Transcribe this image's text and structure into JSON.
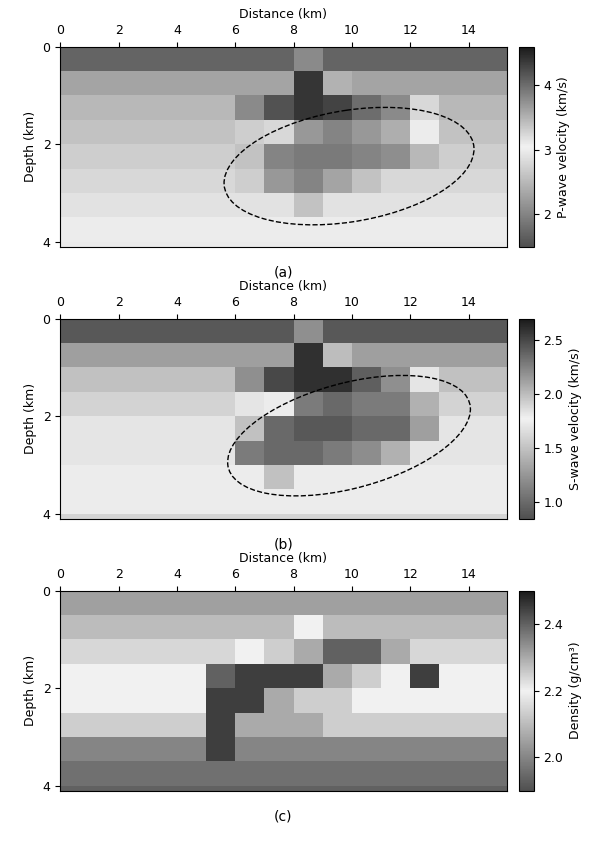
{
  "chart_data": [
    {
      "type": "heatmap",
      "title": "(a)",
      "x_label": "Distance (km)",
      "y_label": "Depth (km)",
      "xlim": [
        0,
        15.3
      ],
      "ylim": [
        4.1,
        0
      ],
      "xticks": [
        0,
        2,
        4,
        6,
        8,
        10,
        12,
        14
      ],
      "yticks": [
        0,
        2,
        4
      ],
      "x": [
        0.5,
        1.5,
        2.5,
        3.5,
        4.5,
        5.5,
        6.5,
        7.5,
        8.5,
        9.5,
        10.5,
        11.5,
        12.5,
        13.5,
        14.5,
        15.5
      ],
      "y": [
        0.25,
        0.75,
        1.25,
        1.75,
        2.25,
        2.75,
        3.25,
        3.75,
        4.25
      ],
      "cells": [
        [
          1.7,
          1.7,
          1.7,
          1.7,
          1.7,
          1.7,
          1.7,
          1.7,
          3.8,
          1.7,
          1.7,
          1.7,
          1.7,
          1.7,
          1.7,
          1.7
        ],
        [
          2.3,
          2.3,
          2.3,
          2.3,
          2.3,
          2.3,
          2.3,
          2.3,
          4.4,
          3.5,
          2.3,
          2.3,
          2.3,
          2.3,
          2.3,
          2.3
        ],
        [
          2.5,
          2.5,
          2.5,
          2.5,
          2.5,
          2.5,
          3.8,
          4.2,
          4.4,
          4.3,
          4.0,
          3.8,
          2.8,
          2.5,
          2.5,
          2.5
        ],
        [
          2.6,
          2.6,
          2.6,
          2.6,
          2.6,
          2.6,
          2.7,
          2.8,
          2.2,
          2.0,
          2.2,
          2.4,
          3.0,
          2.6,
          2.6,
          2.6
        ],
        [
          2.7,
          2.7,
          2.7,
          2.7,
          2.7,
          2.7,
          2.6,
          2.0,
          1.9,
          1.9,
          2.0,
          2.1,
          2.5,
          2.7,
          2.7,
          2.7
        ],
        [
          2.8,
          2.8,
          2.8,
          2.8,
          2.8,
          2.8,
          2.7,
          2.2,
          2.0,
          2.3,
          2.6,
          2.8,
          2.8,
          2.8,
          2.8,
          2.8
        ],
        [
          2.9,
          2.9,
          2.9,
          2.9,
          2.9,
          2.9,
          2.9,
          2.9,
          2.6,
          2.9,
          2.9,
          2.9,
          2.9,
          2.9,
          2.9,
          2.9
        ],
        [
          3.0,
          3.0,
          3.0,
          3.0,
          3.0,
          3.0,
          3.0,
          3.0,
          3.0,
          3.0,
          3.0,
          3.0,
          3.0,
          3.0,
          3.0,
          3.0
        ],
        [
          3.1,
          3.1,
          3.1,
          3.1,
          3.1,
          3.1,
          3.1,
          3.1,
          3.1,
          3.1,
          3.1,
          3.1,
          3.1,
          3.1,
          3.1,
          3.1
        ]
      ],
      "colorbar_label": "P-wave velocity (km/s)",
      "colorbar_lim": [
        1.5,
        4.6
      ],
      "colorbar_ticks": [
        2,
        3,
        4
      ]
    },
    {
      "type": "heatmap",
      "title": "(b)",
      "x_label": "Distance (km)",
      "y_label": "Depth (km)",
      "xlim": [
        0,
        15.3
      ],
      "ylim": [
        4.1,
        0
      ],
      "xticks": [
        0,
        2,
        4,
        6,
        8,
        10,
        12,
        14
      ],
      "yticks": [
        0,
        2,
        4
      ],
      "x": [
        0.5,
        1.5,
        2.5,
        3.5,
        4.5,
        5.5,
        6.5,
        7.5,
        8.5,
        9.5,
        10.5,
        11.5,
        12.5,
        13.5,
        14.5,
        15.5
      ],
      "y": [
        0.25,
        0.75,
        1.25,
        1.75,
        2.25,
        2.75,
        3.25,
        3.75,
        4.25
      ],
      "cells": [
        [
          0.9,
          0.9,
          0.9,
          0.9,
          0.9,
          0.9,
          0.9,
          0.9,
          2.2,
          0.9,
          0.9,
          0.9,
          0.9,
          0.9,
          0.9,
          0.9
        ],
        [
          1.3,
          1.3,
          1.3,
          1.3,
          1.3,
          1.3,
          1.3,
          1.3,
          2.6,
          2.0,
          1.3,
          1.3,
          1.3,
          1.3,
          1.3,
          1.3
        ],
        [
          1.5,
          1.5,
          1.5,
          1.5,
          1.5,
          1.5,
          2.2,
          2.5,
          2.6,
          2.6,
          2.4,
          2.2,
          1.7,
          1.5,
          1.5,
          1.5
        ],
        [
          1.6,
          1.6,
          1.6,
          1.6,
          1.6,
          1.6,
          1.7,
          1.8,
          1.1,
          1.0,
          1.1,
          1.1,
          1.4,
          1.6,
          1.6,
          1.6
        ],
        [
          1.7,
          1.7,
          1.7,
          1.7,
          1.7,
          1.7,
          1.5,
          1.0,
          0.9,
          0.9,
          1.0,
          1.0,
          1.3,
          1.7,
          1.7,
          1.7
        ],
        [
          1.7,
          1.7,
          1.7,
          1.7,
          1.7,
          1.7,
          1.1,
          1.0,
          1.0,
          1.1,
          1.2,
          1.4,
          1.7,
          1.7,
          1.7,
          1.7
        ],
        [
          1.8,
          1.8,
          1.8,
          1.8,
          1.8,
          1.8,
          1.8,
          1.5,
          1.8,
          1.8,
          1.8,
          1.8,
          1.8,
          1.8,
          1.8,
          1.8
        ],
        [
          1.8,
          1.8,
          1.8,
          1.8,
          1.8,
          1.8,
          1.8,
          1.8,
          1.8,
          1.8,
          1.8,
          1.8,
          1.8,
          1.8,
          1.8,
          1.8
        ],
        [
          1.9,
          1.9,
          1.9,
          1.9,
          1.9,
          1.9,
          1.9,
          1.9,
          1.9,
          1.9,
          1.9,
          1.9,
          1.9,
          1.9,
          1.9,
          1.9
        ]
      ],
      "colorbar_label": "S-wave velocity (km/s)",
      "colorbar_lim": [
        0.85,
        2.7
      ],
      "colorbar_ticks": [
        1.0,
        1.5,
        2.0,
        2.5
      ]
    },
    {
      "type": "heatmap",
      "title": "(c)",
      "x_label": "Distance (km)",
      "y_label": "Depth (km)",
      "xlim": [
        0,
        15.3
      ],
      "ylim": [
        4.1,
        0
      ],
      "xticks": [
        0,
        2,
        4,
        6,
        8,
        10,
        12,
        14
      ],
      "yticks": [
        0,
        2,
        4
      ],
      "x": [
        0.5,
        1.5,
        2.5,
        3.5,
        4.5,
        5.5,
        6.5,
        7.5,
        8.5,
        9.5,
        10.5,
        11.5,
        12.5,
        13.5,
        14.5,
        15.5
      ],
      "y": [
        0.25,
        0.75,
        1.25,
        1.75,
        2.25,
        2.75,
        3.25,
        3.75,
        4.25
      ],
      "cells": [
        [
          2.05,
          2.05,
          2.05,
          2.05,
          2.05,
          2.05,
          2.05,
          2.05,
          2.05,
          2.05,
          2.05,
          2.05,
          2.05,
          2.05,
          2.05,
          2.05
        ],
        [
          2.1,
          2.1,
          2.1,
          2.1,
          2.1,
          2.1,
          2.1,
          2.1,
          2.2,
          2.1,
          2.1,
          2.1,
          2.1,
          2.1,
          2.1,
          2.1
        ],
        [
          2.15,
          2.15,
          2.15,
          2.15,
          2.15,
          2.15,
          2.2,
          2.25,
          2.3,
          2.4,
          2.4,
          2.3,
          2.15,
          2.15,
          2.15,
          2.15
        ],
        [
          2.2,
          2.2,
          2.2,
          2.2,
          2.2,
          2.4,
          2.45,
          2.45,
          2.45,
          2.3,
          2.25,
          2.2,
          2.45,
          2.2,
          2.2,
          2.2
        ],
        [
          2.2,
          2.2,
          2.2,
          2.2,
          2.2,
          2.45,
          2.45,
          2.3,
          2.25,
          2.25,
          2.2,
          2.2,
          2.2,
          2.2,
          2.2,
          2.2
        ],
        [
          2.25,
          2.25,
          2.25,
          2.25,
          2.25,
          2.45,
          2.3,
          2.3,
          2.3,
          2.25,
          2.25,
          2.25,
          2.25,
          2.25,
          2.25,
          2.25
        ],
        [
          2.35,
          2.35,
          2.35,
          2.35,
          2.35,
          2.45,
          2.35,
          2.35,
          2.35,
          2.35,
          2.35,
          2.35,
          2.35,
          2.35,
          2.35,
          2.35
        ],
        [
          2.38,
          2.38,
          2.38,
          2.38,
          2.38,
          2.38,
          2.38,
          2.38,
          2.38,
          2.38,
          2.38,
          2.38,
          2.38,
          2.38,
          2.38,
          2.38
        ],
        [
          2.4,
          2.4,
          2.4,
          2.4,
          2.4,
          2.4,
          2.4,
          2.4,
          2.4,
          2.4,
          2.4,
          2.4,
          2.4,
          2.4,
          2.4,
          2.4
        ]
      ],
      "colorbar_label": "Density (g/cm³)",
      "colorbar_lim": [
        1.9,
        2.5
      ],
      "colorbar_ticks": [
        2.0,
        2.2,
        2.4
      ]
    }
  ]
}
